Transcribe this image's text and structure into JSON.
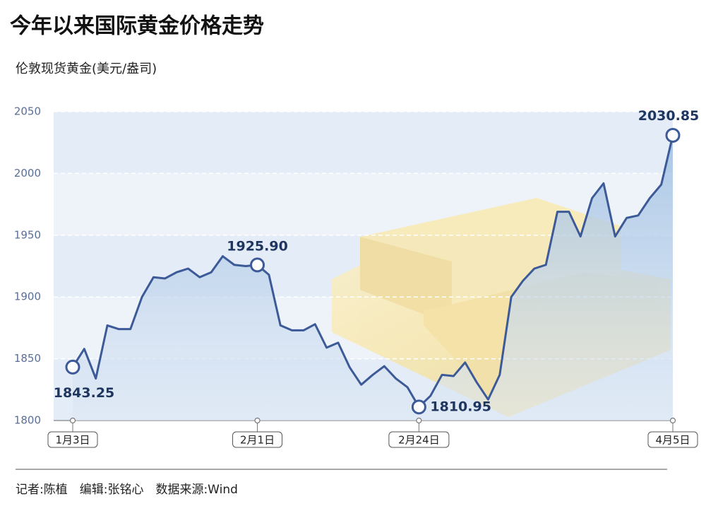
{
  "chart_data": {
    "type": "line",
    "title": "今年以来国际黄金价格走势",
    "y_label": "伦敦现货黄金(美元/盎司)",
    "footer": "记者:陈植　编辑:张铭心　数据来源:Wind",
    "categories": [
      "1月3日",
      null,
      null,
      null,
      null,
      null,
      null,
      null,
      null,
      null,
      null,
      null,
      null,
      null,
      null,
      null,
      "2月1日",
      null,
      null,
      null,
      null,
      null,
      null,
      null,
      null,
      null,
      null,
      null,
      null,
      null,
      "2月24日",
      null,
      null,
      null,
      null,
      null,
      null,
      null,
      null,
      null,
      null,
      null,
      null,
      null,
      null,
      null,
      null,
      null,
      null,
      null,
      null,
      null,
      "4月5日"
    ],
    "series": [
      {
        "name": "伦敦现货黄金",
        "color": "#3d5a98",
        "values": [
          1843.25,
          1858,
          1834,
          1877,
          1874,
          1874,
          1900,
          1916,
          1915,
          1920,
          1923,
          1916,
          1920,
          1933,
          1926,
          1925,
          1925.9,
          1918,
          1877,
          1873,
          1873,
          1878,
          1859,
          1863,
          1843,
          1829,
          1837,
          1844,
          1834,
          1827,
          1810.95,
          1820,
          1837,
          1836,
          1847,
          1831,
          1817,
          1837,
          1900,
          1913,
          1923,
          1926,
          1969,
          1969,
          1949,
          1980,
          1992,
          1949,
          1964,
          1966,
          1980,
          1991,
          2030.85
        ],
        "value_labels": [
          "1843.25",
          null,
          null,
          null,
          null,
          null,
          null,
          null,
          null,
          null,
          null,
          null,
          null,
          null,
          null,
          null,
          "1925.90",
          null,
          null,
          null,
          null,
          null,
          null,
          null,
          null,
          null,
          null,
          null,
          null,
          null,
          "1810.95",
          null,
          null,
          null,
          null,
          null,
          null,
          null,
          null,
          null,
          null,
          null,
          null,
          null,
          null,
          null,
          null,
          null,
          null,
          null,
          null,
          null,
          "2030.85"
        ]
      }
    ],
    "ylim": [
      1800,
      2050
    ],
    "yticks": [
      1800,
      1850,
      1900,
      1950,
      2000,
      2050
    ],
    "grid": true
  }
}
